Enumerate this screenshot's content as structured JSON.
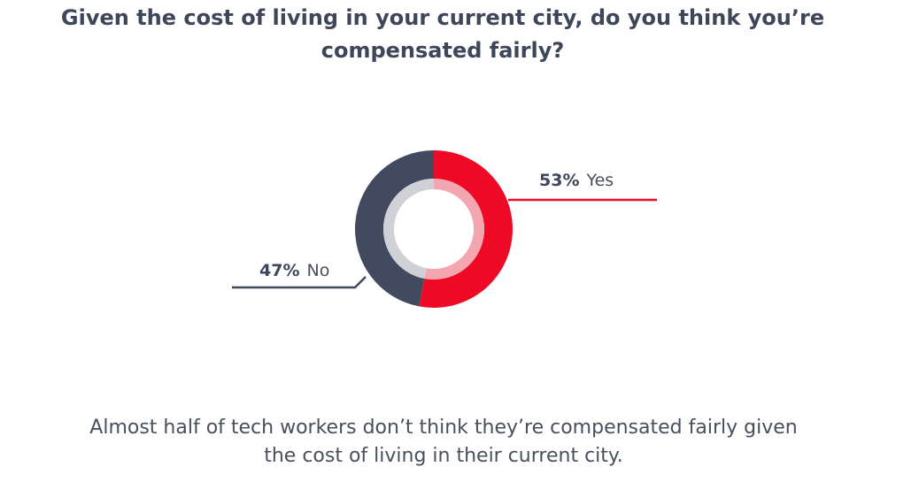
{
  "title": {
    "line1": "Given the cost of living in your current city, do you think you’re",
    "line2": "compensated fairly?"
  },
  "caption": {
    "line1": "Almost half of tech workers don’t think they’re compensated fairly given",
    "line2": "the cost of living in their current city."
  },
  "colors": {
    "yes": "#ee0a24",
    "no": "#414a5e",
    "yes_inner": "#f4a6b0",
    "no_inner": "#cfd1d7",
    "title": "#3e4659",
    "text": "#4a4f5c"
  },
  "chart_data": {
    "type": "pie",
    "variant": "donut",
    "title": "Given the cost of living in your current city, do you think you’re compensated fairly?",
    "slices": [
      {
        "label": "Yes",
        "value": 53,
        "display": "53%",
        "color": "#ee0a24",
        "label_side": "right"
      },
      {
        "label": "No",
        "value": 47,
        "display": "47%",
        "color": "#414a5e",
        "label_side": "left"
      }
    ]
  }
}
